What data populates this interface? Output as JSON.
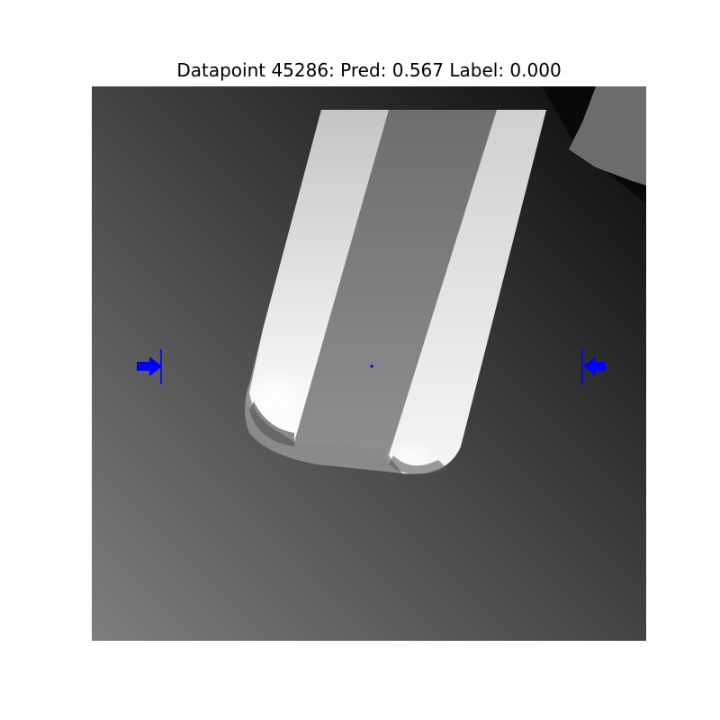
{
  "title": "Datapoint 45286: Pred: 0.567 Label: 0.000",
  "colors": {
    "marker": "#0000ff"
  },
  "icons": {
    "left_marker": "arrow-right-icon",
    "right_marker": "arrow-left-icon",
    "center_marker": "dot-icon"
  }
}
